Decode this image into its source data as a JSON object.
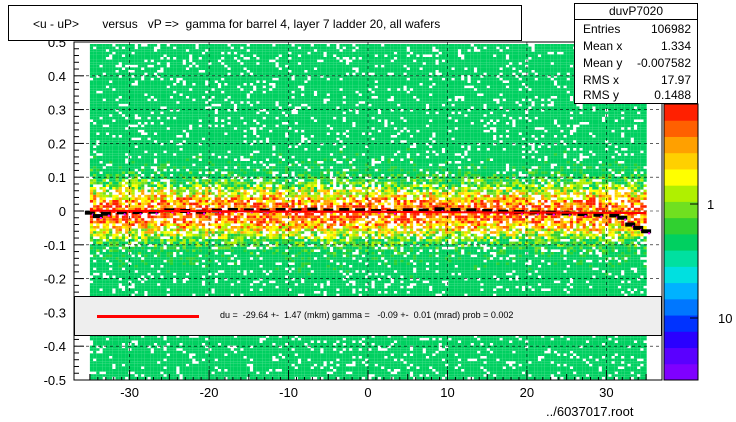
{
  "title": "<u - uP>       versus   vP =>  gamma for barrel 4, layer 7 ladder 20, all wafers",
  "stats": {
    "name": "duvP7020",
    "rows": [
      {
        "label": "Entries",
        "value": "106982"
      },
      {
        "label": "Mean x",
        "value": "1.334"
      },
      {
        "label": "Mean y",
        "value": "-0.007582"
      },
      {
        "label": "RMS x",
        "value": "17.97"
      },
      {
        "label": "RMS y",
        "value": "0.1488"
      }
    ]
  },
  "legend": {
    "text": "du =  -29.64 +-  1.47 (mkm) gamma =   -0.09 +-  0.01 (mrad) prob = 0.002",
    "line_color": "#ff0000"
  },
  "footer": "../6037017.root",
  "colors": {
    "palette": [
      "#7f00ff",
      "#5a00ff",
      "#2a00ff",
      "#0033ff",
      "#0077ff",
      "#00b2ff",
      "#00e0e0",
      "#00e0a0",
      "#00d060",
      "#30d030",
      "#70e020",
      "#b0f000",
      "#ffff00",
      "#ffd000",
      "#ffa000",
      "#ff6000",
      "#ff2000"
    ],
    "profile": "#000000",
    "profile_magenta": "#ff00ff"
  },
  "chart_data": {
    "type": "heatmap",
    "title": "<u - uP>       versus   vP =>  gamma for barrel 4, layer 7 ladder 20, all wafers",
    "xlim": [
      -37,
      37
    ],
    "ylim": [
      -0.5,
      0.5
    ],
    "x_ticks": [
      -30,
      -20,
      -10,
      0,
      10,
      20,
      30
    ],
    "y_ticks": [
      -0.5,
      -0.4,
      -0.3,
      -0.2,
      -0.1,
      0,
      0.1,
      0.2,
      0.3,
      0.4,
      0.5
    ],
    "y_tick_labels": [
      "-0.5",
      "-0.4",
      "-0.3",
      "-0.2",
      "-0.1",
      "0",
      "0.1",
      "0.2",
      "0.3",
      "0.4",
      "0.5"
    ],
    "x_tick_labels": [
      "-30",
      "-20",
      "-10",
      "0",
      "10",
      "20",
      "30"
    ],
    "grid": true,
    "z_scale": "log",
    "z_tick_labels": [
      "1",
      "10"
    ],
    "data_x_range": [
      -35,
      35
    ],
    "profile": {
      "x": [
        -35,
        -34,
        -33,
        -31,
        -29,
        -27,
        -25,
        -23,
        -21,
        -19,
        -17,
        -15,
        -13,
        -11,
        -9,
        -7,
        -5,
        -3,
        -1,
        1,
        3,
        5,
        7,
        9,
        11,
        13,
        15,
        17,
        19,
        21,
        23,
        25,
        27,
        29,
        31,
        32,
        33,
        34,
        35
      ],
      "y": [
        -0.005,
        -0.015,
        -0.008,
        -0.004,
        -0.003,
        -0.002,
        0.002,
        0.0,
        -0.002,
        0.001,
        0.003,
        0.002,
        0.001,
        0.003,
        0.002,
        0.004,
        0.001,
        0.003,
        0.002,
        0.0,
        -0.001,
        0.002,
        0.001,
        0.005,
        0.003,
        0.002,
        0.0,
        -0.002,
        -0.003,
        -0.004,
        -0.005,
        -0.007,
        -0.009,
        -0.011,
        -0.013,
        -0.02,
        -0.04,
        -0.05,
        -0.06
      ]
    },
    "fit": {
      "x": [
        -35,
        35
      ],
      "y": [
        0.001,
        -0.006
      ]
    }
  }
}
